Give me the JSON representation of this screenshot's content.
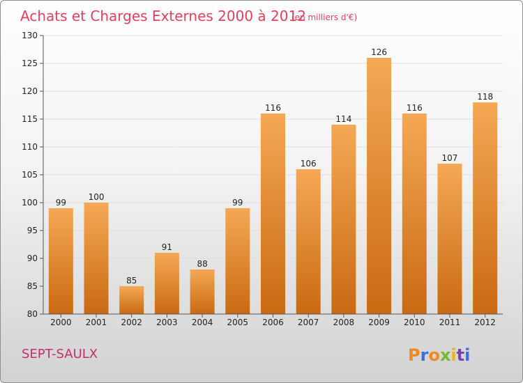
{
  "header": {
    "title": "Achats et Charges Externes 2000 à 2012",
    "unit": "(en milliers d'€)"
  },
  "footer": {
    "place": "SEPT-SAULX",
    "brand": "Proxiti",
    "brand_colors": [
      "#f08a1e",
      "#3b6fd6",
      "#f08a1e",
      "#78b832",
      "#e8b616",
      "#7b3fb0",
      "#3b6fd6"
    ]
  },
  "colors": {
    "bar_top": "#f5a855",
    "bar_bottom": "#c96a12",
    "title": "#e2405e",
    "place": "#c42f6a",
    "grid": "#dddddd",
    "axis": "#555555"
  },
  "chart_data": {
    "type": "bar",
    "title": "Achats et Charges Externes 2000 à 2012",
    "subtitle": "(en milliers d'€)",
    "xlabel": "",
    "ylabel": "",
    "categories": [
      "2000",
      "2001",
      "2002",
      "2003",
      "2004",
      "2005",
      "2006",
      "2007",
      "2008",
      "2009",
      "2010",
      "2011",
      "2012"
    ],
    "values": [
      99,
      100,
      85,
      91,
      88,
      99,
      116,
      106,
      114,
      126,
      116,
      107,
      118
    ],
    "ylim": [
      80,
      130
    ],
    "yticks": [
      80,
      85,
      90,
      95,
      100,
      105,
      110,
      115,
      120,
      125,
      130
    ],
    "grid": true,
    "legend": "none"
  }
}
